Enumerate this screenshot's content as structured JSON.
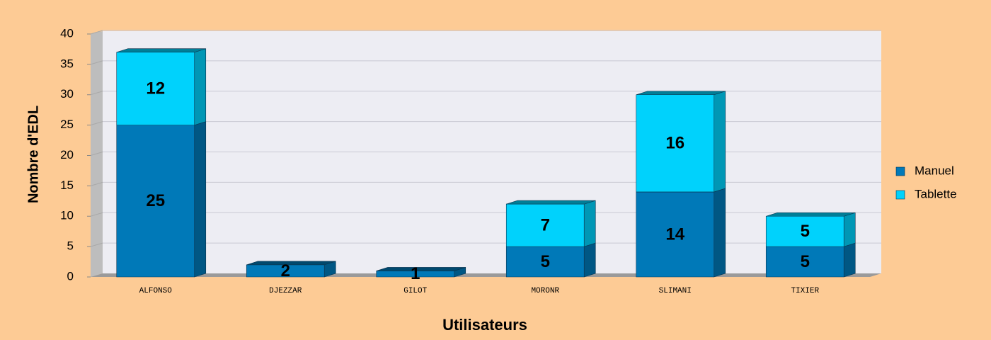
{
  "chart_data": {
    "type": "bar3d_stacked",
    "x_label": "Utilisateurs",
    "y_label": "Nombre d'EDL",
    "categories": [
      "ALFONSO",
      "DJEZZAR",
      "GILOT",
      "MORONR",
      "SLIMANI",
      "TIXIER"
    ],
    "series": [
      {
        "name": "Manuel",
        "color": "#0079b8",
        "values": [
          25,
          2,
          1,
          5,
          14,
          5
        ]
      },
      {
        "name": "Tablette",
        "color": "#00d2fc",
        "values": [
          12,
          null,
          null,
          7,
          16,
          5
        ]
      }
    ],
    "ylim": [
      0,
      40
    ],
    "yticks": [
      0,
      5,
      10,
      15,
      20,
      25,
      30,
      35,
      40
    ],
    "grid": true,
    "legend": "right"
  }
}
